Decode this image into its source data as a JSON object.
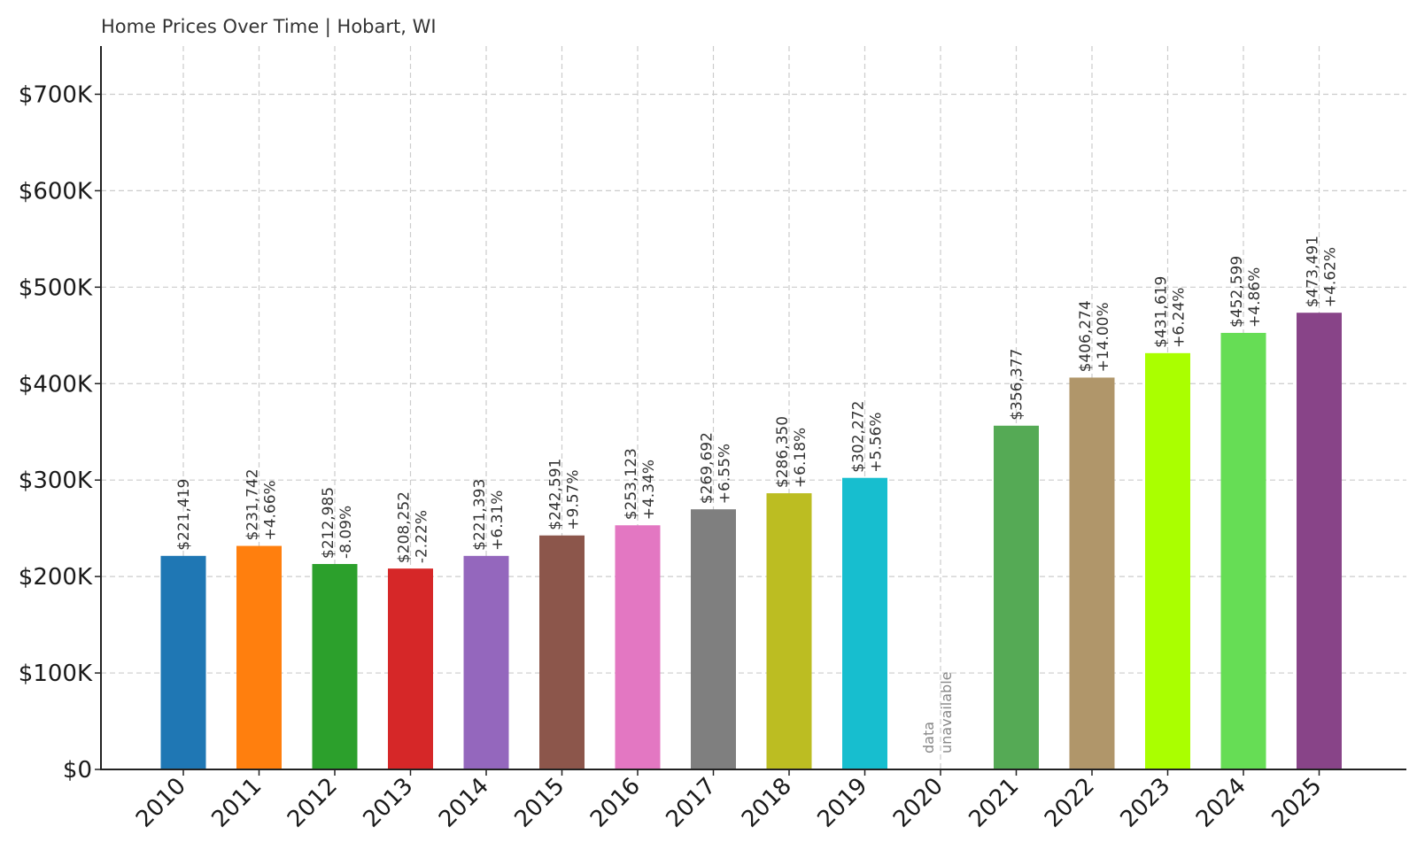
{
  "chart_data": {
    "type": "bar",
    "title": "Home Prices Over Time | Hobart, WI",
    "categories": [
      "2010",
      "2011",
      "2012",
      "2013",
      "2014",
      "2015",
      "2016",
      "2017",
      "2018",
      "2019",
      "2020",
      "2021",
      "2022",
      "2023",
      "2024",
      "2025"
    ],
    "values": [
      221419,
      231742,
      212985,
      208252,
      221393,
      242591,
      253123,
      269692,
      286350,
      302272,
      null,
      356377,
      406274,
      431619,
      452599,
      473491
    ],
    "value_labels": [
      "$221,419",
      "$231,742",
      "$212,985",
      "$208,252",
      "$221,393",
      "$242,591",
      "$253,123",
      "$269,692",
      "$286,350",
      "$302,272",
      "",
      "$356,377",
      "$406,274",
      "$431,619",
      "$452,599",
      "$473,491"
    ],
    "change_labels": [
      "",
      "+4.66%",
      "-8.09%",
      "-2.22%",
      "+6.31%",
      "+9.57%",
      "+4.34%",
      "+6.55%",
      "+6.18%",
      "+5.56%",
      "",
      "",
      "+14.00%",
      "+6.24%",
      "+4.86%",
      "+4.62%"
    ],
    "missing_label_lines": [
      "data",
      "unavailable"
    ],
    "colors": [
      "#1f77b4",
      "#ff7f0e",
      "#2ca02c",
      "#d62728",
      "#9467bd",
      "#8c564b",
      "#e377c2",
      "#7f7f7f",
      "#bcbd22",
      "#17becf",
      "#ffffff",
      "#55aa55",
      "#b0966a",
      "#aaff00",
      "#66dd55",
      "#884488"
    ],
    "y_ticks": [
      0,
      100000,
      200000,
      300000,
      400000,
      500000,
      600000,
      700000
    ],
    "y_tick_labels": [
      "$0",
      "$100K",
      "$200K",
      "$300K",
      "$400K",
      "$500K",
      "$600K",
      "$700K"
    ],
    "ylim": [
      0,
      750000
    ],
    "grid": true,
    "legend": "none"
  }
}
